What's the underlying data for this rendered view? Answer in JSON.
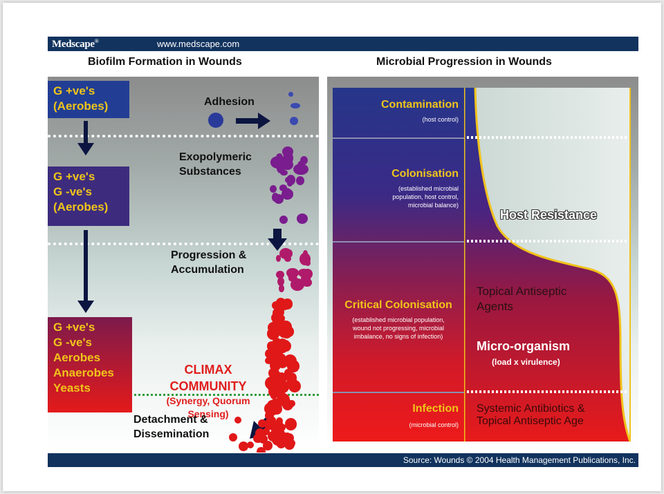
{
  "header": {
    "logo": "Medscape",
    "logo_mark": "®",
    "url": "www.medscape.com"
  },
  "left_panel": {
    "title": "Biofilm Formation in Wounds",
    "boxes": [
      {
        "lines": [
          "G +ve's",
          "(Aerobes)"
        ]
      },
      {
        "lines": [
          "G +ve's",
          "G -ve's",
          "(Aerobes)"
        ]
      },
      {
        "lines": [
          "G +ve's",
          "G -ve's",
          "Aerobes",
          "Anaerobes",
          "Yeasts"
        ]
      }
    ],
    "stages": {
      "adhesion": "Adhesion",
      "exopolymeric": [
        "Exopolymeric",
        "Substances"
      ],
      "progression": [
        "Progression &",
        "Accumulation"
      ],
      "climax": [
        "CLIMAX",
        "COMMUNITY"
      ],
      "climax_sub": [
        "(Synergy, Quorum",
        "Sensing)"
      ],
      "detachment": [
        "Detachment &",
        "Dissemination"
      ]
    },
    "colors": {
      "yellow_text": "#f0c51a",
      "dark_arrow": "#0b1540",
      "climax_red": "#e01e1e",
      "cell_purple": "#7a1d8e",
      "cell_red": "#e01818"
    }
  },
  "right_panel": {
    "title": "Microbial Progression in Wounds",
    "stages": [
      {
        "title": "Contamination",
        "sub": [
          "(host control)"
        ]
      },
      {
        "title": "Colonisation",
        "sub": [
          "(established microbial",
          "population, host control,",
          "microbial balance)"
        ]
      },
      {
        "title": "Critical Colonisation",
        "sub": [
          "(established microbial population,",
          "wound not progressing, microbial",
          "imbalance, no signs of infection)"
        ]
      },
      {
        "title": "Infection",
        "sub": [
          "(microbial control)"
        ]
      }
    ],
    "labels": {
      "host_resistance": "Host Resistance",
      "topical": [
        "Topical Antiseptic",
        "Agents"
      ],
      "micro": "Micro-organism",
      "micro_sub": "(load x virulence)",
      "systemic": [
        "Systemic Antibiotics &",
        "Topical Antiseptic Age"
      ]
    }
  },
  "footer": {
    "source": "Source: Wounds © 2004 Health Management Publications, Inc."
  }
}
